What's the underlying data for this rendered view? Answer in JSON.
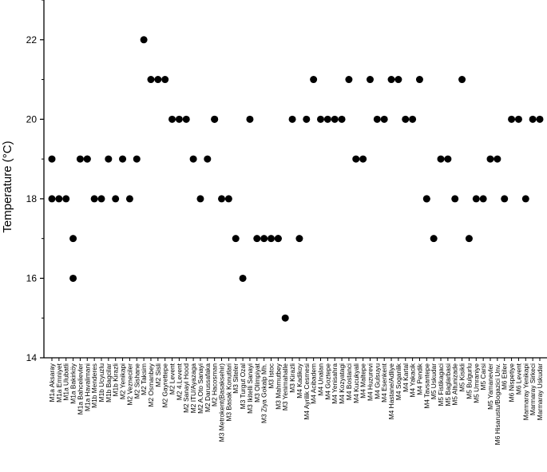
{
  "chart_data": {
    "type": "scatter",
    "ylabel": "Temperature (°C)",
    "xlabel": "",
    "ylim": [
      14,
      23
    ],
    "yticks": [
      14,
      16,
      18,
      20,
      22
    ],
    "grid": false,
    "marker_color": "#000000",
    "categories": [
      "M1a Aksaray",
      "M1a Emniyet",
      "M1a Ulubatli",
      "M1a Bakirköy",
      "M1a Bahcelievler",
      "M1a Havalimani",
      "M1b Menderes",
      "M1b Ucyuzlu",
      "M1b Bagcilar",
      "M1b Kirazli",
      "M2 Yenikapi",
      "M2 Vezneciler",
      "M2 Sishane",
      "M2 Taksim",
      "M2 Osmanbey",
      "M2 Sisli",
      "M2 Gayrettepe",
      "M2 Levent",
      "M2 4.Levent",
      "M2 Sanayi Hood",
      "M2 ITU/Ayazaga",
      "M2 A.Oto Sanayi",
      "M2 Darussafaka",
      "M2 Hacosman",
      "M3 Metrokent(Basaksehir)",
      "M3 Basak Konutlari",
      "M3 Siteler",
      "M3 Turgut Ozal",
      "M3 Ikitelli Sanayi",
      "M3 Olimpiyat",
      "M3 Ziya Gokalp Mh.",
      "M3 Istoc",
      "M3 Mahmutbey",
      "M3 Yenimahalle",
      "M3 Kirazli",
      "M4 Kadikoy",
      "M4 Ayrilik Cesmesi",
      "M4 Acibadem",
      "M4 Unalan",
      "M4 Goztepe",
      "M4 Yenisahra",
      "M4 Kozyatagi",
      "M4 Bostanci",
      "M4 Kucukyali",
      "M4 Maltepe",
      "M4 Huzurevi",
      "M4 Gulsuyu",
      "M4 Esenkent",
      "M4 Hastane/Adliye",
      "M4 Soganlik",
      "M4 Kartal",
      "M4 Yakacik",
      "M4 Pendik",
      "M4 Tavsantepe",
      "M5 Uskudar",
      "M5 Fistikagaci",
      "M5 Baglarbasi",
      "M5 Altunizade",
      "M5 Kisikli",
      "M5 Bulgurlu",
      "M5 Umraniye",
      "M5 Carsi",
      "M5 Yamanevler",
      "M6 Hisarustu/Bogazici Unv.",
      "M6 Etiler",
      "M6 Nispetiye",
      "M6 Levent",
      "Marmaray Yenikapi",
      "Marmaray Sirkeci",
      "Marmaray Uskudar"
    ],
    "x": [
      "M1a Aksaray",
      "M1a Aksaray",
      "M1a Emniyet",
      "M1a Ulubatli",
      "M1a Bakirköy",
      "M1a Bakirköy",
      "M1a Bahcelievler",
      "M1a Havalimani",
      "M1a Havalimani",
      "M1b Menderes",
      "M1b Ucyuzlu",
      "M1b Bagcilar",
      "M1b Kirazli",
      "M2 Yenikapi",
      "M2 Vezneciler",
      "M2 Sishane",
      "M2 Taksim",
      "M2 Osmanbey",
      "M2 Sisli",
      "M2 Gayrettepe",
      "M2 Levent",
      "M2 4.Levent",
      "M2 Sanayi Hood",
      "M2 ITU/Ayazaga",
      "M2 A.Oto Sanayi",
      "M2 Darussafaka",
      "M2 Hacosman",
      "M2 Hacosman",
      "M3 Metrokent(Basaksehir)",
      "M3 Basak Konutlari",
      "M3 Siteler",
      "M3 Turgut Ozal",
      "M3 Ikitelli Sanayi",
      "M3 Olimpiyat",
      "M3 Ziya Gokalp Mh.",
      "M3 Istoc",
      "M3 Mahmutbey",
      "M3 Mahmutbey",
      "M3 Yenimahalle",
      "M3 Kirazli",
      "M4 Kadikoy",
      "M4 Ayrilik Cesmesi",
      "M4 Acibadem",
      "M4 Unalan",
      "M4 Goztepe",
      "M4 Yenisahra",
      "M4 Kozyatagi",
      "M4 Bostanci",
      "M4 Kucukyali",
      "M4 Maltepe",
      "M4 Huzurevi",
      "M4 Gulsuyu",
      "M4 Esenkent",
      "M4 Hastane/Adliye",
      "M4 Soganlik",
      "M4 Kartal",
      "M4 Yakacik",
      "M4 Pendik",
      "M4 Tavsantepe",
      "M4 Tavsantepe",
      "M5 Uskudar",
      "M5 Fistikagaci",
      "M5 Baglarbasi",
      "M5 Altunizade",
      "M5 Kisikli",
      "M5 Bulgurlu",
      "M5 Umraniye",
      "M5 Carsi",
      "M5 Yamanevler",
      "M6 Hisarustu/Bogazici Unv.",
      "M6 Etiler",
      "M6 Nispetiye",
      "M6 Levent",
      "Marmaray Yenikapi",
      "Marmaray Sirkeci",
      "Marmaray Uskudar"
    ],
    "y": [
      19,
      18,
      18,
      18,
      16,
      17,
      19,
      19,
      19,
      18,
      18,
      19,
      18,
      19,
      18,
      19,
      22,
      21,
      21,
      21,
      20,
      20,
      20,
      19,
      18,
      19,
      20,
      20,
      18,
      18,
      17,
      16,
      20,
      17,
      17,
      17,
      17,
      17,
      15,
      20,
      17,
      20,
      21,
      20,
      20,
      20,
      20,
      21,
      19,
      19,
      21,
      20,
      20,
      21,
      21,
      20,
      20,
      21,
      18,
      18,
      17,
      19,
      19,
      18,
      21,
      17,
      18,
      18,
      19,
      19,
      18,
      20,
      20,
      18,
      20,
      20
    ]
  }
}
